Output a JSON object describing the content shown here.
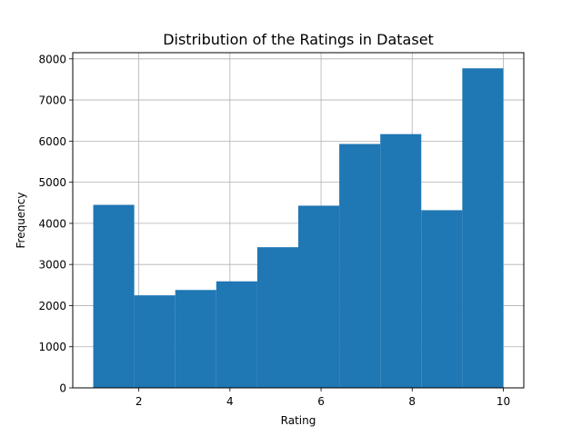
{
  "chart_data": {
    "type": "bar",
    "title": "Distribution of the Ratings in Dataset",
    "xlabel": "Rating",
    "ylabel": "Frequency",
    "bin_edges": [
      1.0,
      1.9,
      2.8,
      3.7,
      4.6,
      5.5,
      6.4,
      7.3,
      8.2,
      9.1,
      10.0
    ],
    "values": [
      4450,
      2250,
      2380,
      2590,
      3420,
      4430,
      5930,
      6170,
      4320,
      7770
    ],
    "xlim": [
      0.55,
      10.45
    ],
    "ylim": [
      0,
      8150
    ],
    "xticks": [
      2,
      4,
      6,
      8,
      10
    ],
    "yticks": [
      0,
      1000,
      2000,
      3000,
      4000,
      5000,
      6000,
      7000,
      8000
    ],
    "grid": true,
    "bar_color": "#1f77b4",
    "grid_color": "#b0b0b0"
  }
}
